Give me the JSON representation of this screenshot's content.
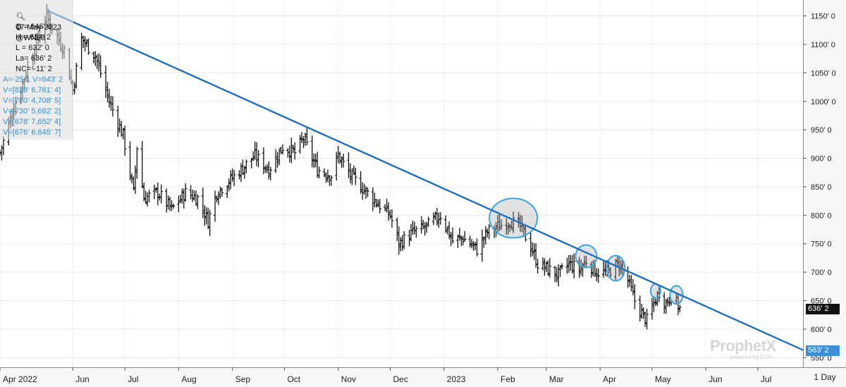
{
  "info_panel": {
    "date": "17-May-2023",
    "symbol": "@WN23",
    "open": "O = 646' 6",
    "high": "H = 654' 2",
    "low": "L = 632' 0",
    "last": "La= 636' 2",
    "net_change": "NC= -11' 2",
    "line_a": "A=-25,1 V=643' 2",
    "line_v1": "V=[828' 6,761' 4]",
    "line_v2": "V=[750' 4,708' 5]",
    "line_v3": "V=[730' 5,682' 2]",
    "line_v4": "V=[678' 7,652' 4]",
    "line_v5": "V=[676' 6,645' 7]"
  },
  "price_tags": {
    "last": "636' 2",
    "trendline": "563' 2"
  },
  "period": "1 Day",
  "brand": {
    "name": "ProphetX",
    "sub": "powered by DTN"
  },
  "colors": {
    "bars": "#111111",
    "trendline": "#1f6fbf",
    "highlight": "#3aa6e0"
  },
  "chart_data": {
    "type": "bar",
    "style": "OHLC daily price bars",
    "x_tick_labels": [
      "Apr 2022",
      "Jun",
      "Jul",
      "Aug",
      "Sep",
      "Oct",
      "Nov",
      "Dec",
      "2023",
      "Feb",
      "Mar",
      "Apr",
      "May",
      "Jun",
      "Jul"
    ],
    "y_tick_labels": [
      "1150' 0",
      "1100' 0",
      "1050' 0",
      "1000' 0",
      "950' 0",
      "900' 0",
      "850' 0",
      "800' 0",
      "750' 0",
      "700' 0",
      "650' 0",
      "600' 0",
      "550' 0"
    ],
    "ylim": [
      533,
      1178
    ],
    "xlim": [
      "2022-04-20",
      "2023-07-27"
    ],
    "trendline": {
      "start": [
        "2022-05-17",
        1160
      ],
      "end": [
        "2023-07-27",
        563.25
      ]
    },
    "highlight_circles": [
      {
        "date": "2023-02-10",
        "price": 795
      },
      {
        "date": "2023-03-24",
        "price": 728
      },
      {
        "date": "2023-04-10",
        "price": 707
      },
      {
        "date": "2023-05-03",
        "price": 667
      },
      {
        "date": "2023-05-15",
        "price": 660
      }
    ],
    "path_anchors": [
      [
        "2022-04-20",
        910
      ],
      [
        "2022-04-28",
        990
      ],
      [
        "2022-05-05",
        1050
      ],
      [
        "2022-05-12",
        1110
      ],
      [
        "2022-05-17",
        1150
      ],
      [
        "2022-05-20",
        1130
      ],
      [
        "2022-05-27",
        1090
      ],
      [
        "2022-06-01",
        1020
      ],
      [
        "2022-06-06",
        1110
      ],
      [
        "2022-06-14",
        1080
      ],
      [
        "2022-06-22",
        1000
      ],
      [
        "2022-06-30",
        940
      ],
      [
        "2022-07-06",
        840
      ],
      [
        "2022-07-08",
        920
      ],
      [
        "2022-07-12",
        830
      ],
      [
        "2022-07-20",
        840
      ],
      [
        "2022-07-28",
        810
      ],
      [
        "2022-08-05",
        840
      ],
      [
        "2022-08-12",
        830
      ],
      [
        "2022-08-18",
        790
      ],
      [
        "2022-08-23",
        840
      ],
      [
        "2022-08-30",
        860
      ],
      [
        "2022-09-06",
        880
      ],
      [
        "2022-09-14",
        905
      ],
      [
        "2022-09-22",
        880
      ],
      [
        "2022-09-30",
        920
      ],
      [
        "2022-10-07",
        910
      ],
      [
        "2022-10-12",
        935
      ],
      [
        "2022-10-20",
        880
      ],
      [
        "2022-10-28",
        870
      ],
      [
        "2022-11-01",
        905
      ],
      [
        "2022-11-08",
        870
      ],
      [
        "2022-11-16",
        845
      ],
      [
        "2022-11-24",
        820
      ],
      [
        "2022-12-01",
        800
      ],
      [
        "2022-12-06",
        750
      ],
      [
        "2022-12-14",
        770
      ],
      [
        "2022-12-22",
        780
      ],
      [
        "2022-12-30",
        800
      ],
      [
        "2023-01-06",
        755
      ],
      [
        "2023-01-12",
        760
      ],
      [
        "2023-01-20",
        740
      ],
      [
        "2023-01-26",
        770
      ],
      [
        "2023-02-01",
        780
      ],
      [
        "2023-02-08",
        790
      ],
      [
        "2023-02-14",
        780
      ],
      [
        "2023-02-20",
        745
      ],
      [
        "2023-02-24",
        715
      ],
      [
        "2023-03-02",
        705
      ],
      [
        "2023-03-08",
        695
      ],
      [
        "2023-03-14",
        715
      ],
      [
        "2023-03-20",
        705
      ],
      [
        "2023-03-24",
        720
      ],
      [
        "2023-03-30",
        700
      ],
      [
        "2023-04-05",
        700
      ],
      [
        "2023-04-12",
        715
      ],
      [
        "2023-04-17",
        685
      ],
      [
        "2023-04-21",
        650
      ],
      [
        "2023-04-26",
        622
      ],
      [
        "2023-04-28",
        615
      ],
      [
        "2023-05-02",
        645
      ],
      [
        "2023-05-05",
        665
      ],
      [
        "2023-05-09",
        645
      ],
      [
        "2023-05-12",
        660
      ],
      [
        "2023-05-17",
        636
      ]
    ]
  }
}
